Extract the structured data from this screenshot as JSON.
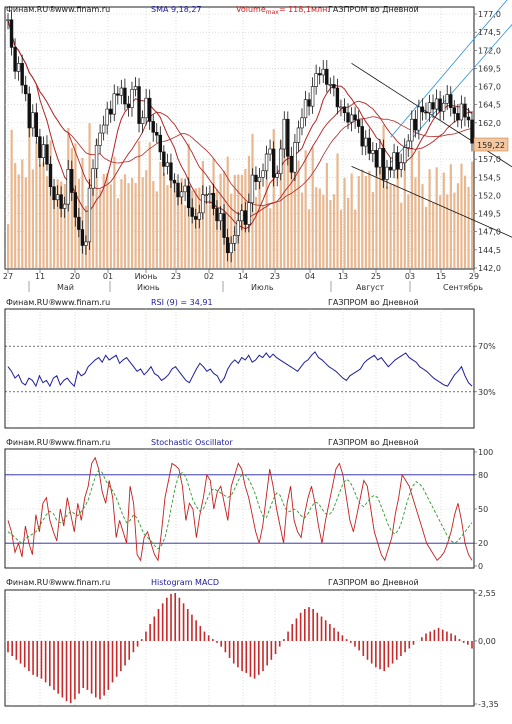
{
  "colors": {
    "background": "#ffffff",
    "panel_border": "#222222",
    "grid": "#c8c8c8",
    "header_text": "#222222",
    "header_title": "#1a1aa0",
    "header_volume": "#cc2222",
    "price_candle_up": "#111111",
    "price_candle_down": "#111111",
    "volume_bar": "#e9b78f",
    "sma": "#b42424",
    "channel_blue": "#2d8fd8",
    "channel_black": "#111111",
    "rsi_line": "#1e1e9c",
    "stoch_k": "#c41e1e",
    "stoch_d": "#2e9a2e",
    "stoch_level": "#1e1ea0",
    "macd_bar": "#c82828",
    "last_price_bg": "#f3c8a0"
  },
  "x_axis": {
    "labels": [
      "27",
      "11",
      "20",
      "01",
      "Июнь",
      "23",
      "02",
      "14",
      "23",
      "04",
      "13",
      "25",
      "03",
      "15",
      "29"
    ],
    "months": [
      "Май",
      "Июнь",
      "Июль",
      "Август",
      "Сентябрь"
    ]
  },
  "price_panel": {
    "source": "Финам.RU®",
    "site": "www.finam.ru",
    "sma_label": "SMA 9,18,27",
    "volume_label": "Volume",
    "volume_sub": "max",
    "volume_value": "= 118,1млн.",
    "title": "ГАЗПРОМ во Дневной",
    "last_price": "159,22",
    "ticks": [
      "177,0",
      "174,5",
      "172,0",
      "169,5",
      "167,0",
      "164,5",
      "162,0",
      "159,5",
      "157,0",
      "154,5",
      "152,0",
      "149,5",
      "147,0",
      "144,5",
      "142,0"
    ]
  },
  "rsi_panel": {
    "source": "Финам.RU®",
    "site": "www.finam.ru",
    "label": "RSI (9) = 34,91",
    "title": "ГАЗПРОМ во Дневной",
    "ticks": [
      "70%",
      "30%"
    ]
  },
  "stoch_panel": {
    "source": "Финам.RU®",
    "site": "www.finam.ru",
    "label": "Stochastic Oscillator",
    "title": "ГАЗПРОМ во Дневной",
    "ticks": [
      "100",
      "80",
      "50",
      "20",
      "0"
    ]
  },
  "macd_panel": {
    "source": "Финам.RU®",
    "site": "www.finam.ru",
    "label": "Histogram MACD",
    "title": "ГАЗПРОМ во Дневной",
    "ticks": [
      "2,55",
      "0,00",
      "-3,35"
    ]
  },
  "chart_data": [
    {
      "type": "candlestick",
      "title": "ГАЗПРОМ во Дневной",
      "ylim": [
        142.0,
        177.0
      ],
      "x_ticks": [
        "27",
        "11",
        "20",
        "01",
        "Июнь",
        "23",
        "02",
        "14",
        "23",
        "04",
        "13",
        "25",
        "03",
        "15",
        "29"
      ],
      "overlays": [
        "SMA 9,18,27",
        "Volume"
      ],
      "last_value": 159.22,
      "close": [
        176.2,
        172.4,
        169.1,
        170.2,
        167.2,
        166.0,
        161.3,
        163.4,
        160.1,
        157.2,
        159.0,
        156.3,
        153.2,
        151.4,
        152.1,
        150.2,
        150.8,
        155.6,
        152.4,
        149.0,
        147.3,
        145.1,
        145.6,
        153.0,
        155.7,
        158.9,
        160.6,
        161.7,
        163.9,
        163.2,
        166.0,
        165.8,
        166.8,
        164.6,
        164.1,
        166.6,
        167.0,
        161.9,
        162.7,
        165.4,
        162.2,
        160.7,
        160.3,
        158.0,
        156.0,
        156.5,
        154.1,
        153.7,
        151.8,
        152.5,
        153.3,
        150.3,
        149.1,
        148.7,
        149.6,
        152.1,
        152.1,
        152.3,
        150.2,
        148.5,
        149.5,
        146.2,
        144.1,
        145.4,
        146.5,
        148.5,
        149.9,
        148.0,
        151.0,
        154.8,
        153.9,
        154.5,
        155.4,
        157.7,
        158.4,
        154.5,
        155.0,
        158.4,
        162.5,
        157.4,
        155.2,
        159.3,
        161.3,
        162.7,
        165.2,
        164.3,
        167.0,
        168.8,
        168.6,
        169.4,
        167.3,
        167.3,
        166.8,
        164.2,
        164.2,
        163.4,
        162.1,
        163.1,
        162.4,
        161.5,
        158.8,
        159.9,
        157.8,
        158.2,
        155.9,
        158.5,
        154.2,
        155.9,
        155.5,
        157.9,
        155.6,
        156.5,
        158.6,
        159.5,
        162.5,
        161.0,
        164.2,
        163.5,
        163.4,
        164.8,
        163.9,
        165.3,
        163.6,
        164.7,
        165.9,
        164.1,
        163.3,
        162.4,
        164.6,
        162.8,
        162.4,
        159.2
      ],
      "rsi_value": 34.91
    },
    {
      "type": "line",
      "title": "RSI (9) = 34,91",
      "ylim": [
        0,
        100
      ],
      "levels": [
        70,
        30
      ],
      "values": [
        52,
        48,
        42,
        45,
        38,
        36,
        42,
        40,
        35,
        44,
        38,
        40,
        35,
        42,
        44,
        36,
        40,
        42,
        38,
        35,
        48,
        44,
        46,
        52,
        55,
        58,
        60,
        56,
        62,
        58,
        60,
        62,
        55,
        58,
        60,
        56,
        52,
        48,
        50,
        45,
        48,
        52,
        46,
        44,
        40,
        42,
        45,
        50,
        52,
        48,
        44,
        40,
        38,
        44,
        50,
        55,
        52,
        48,
        50,
        46,
        44,
        38,
        42,
        50,
        55,
        58,
        55,
        60,
        58,
        62,
        56,
        58,
        62,
        60,
        64,
        60,
        63,
        60,
        58,
        56,
        54,
        52,
        50,
        48,
        52,
        56,
        58,
        62,
        65,
        60,
        58,
        55,
        52,
        50,
        48,
        45,
        42,
        40,
        44,
        46,
        48,
        50,
        55,
        58,
        60,
        62,
        58,
        60,
        56,
        52,
        55,
        58,
        60,
        62,
        64,
        60,
        58,
        56,
        52,
        50,
        48,
        45,
        42,
        40,
        38,
        36,
        35,
        40,
        45,
        48,
        52,
        44,
        38,
        35
      ]
    },
    {
      "type": "line",
      "title": "Stochastic Oscillator",
      "ylim": [
        0,
        100
      ],
      "levels": [
        80,
        20
      ],
      "series": [
        {
          "name": "%K",
          "values": [
            40,
            30,
            12,
            20,
            8,
            35,
            20,
            10,
            45,
            30,
            55,
            60,
            40,
            30,
            22,
            50,
            35,
            60,
            45,
            30,
            55,
            40,
            60,
            70,
            90,
            95,
            85,
            65,
            55,
            75,
            60,
            25,
            40,
            30,
            20,
            70,
            55,
            10,
            5,
            25,
            30,
            20,
            10,
            5,
            30,
            60,
            75,
            90,
            88,
            85,
            70,
            40,
            55,
            50,
            25,
            45,
            60,
            80,
            75,
            50,
            65,
            70,
            55,
            40,
            70,
            80,
            90,
            85,
            70,
            60,
            45,
            30,
            20,
            35,
            60,
            85,
            70,
            50,
            35,
            20,
            55,
            70,
            40,
            30,
            25,
            45,
            60,
            70,
            55,
            35,
            20,
            40,
            55,
            70,
            85,
            90,
            80,
            60,
            40,
            30,
            45,
            60,
            75,
            70,
            50,
            30,
            20,
            10,
            5,
            15,
            25,
            45,
            60,
            80,
            75,
            70,
            60,
            50,
            40,
            30,
            20,
            15,
            10,
            5,
            8,
            12,
            20,
            30,
            45,
            55,
            40,
            20,
            10,
            5
          ]
        },
        {
          "name": "%D",
          "values": [
            30,
            28,
            25,
            22,
            20,
            24,
            26,
            28,
            30,
            35,
            40,
            45,
            48,
            46,
            40,
            38,
            40,
            45,
            48,
            46,
            44,
            48,
            52,
            58,
            68,
            78,
            84,
            82,
            75,
            70,
            66,
            60,
            52,
            44,
            38,
            40,
            45,
            42,
            35,
            28,
            25,
            22,
            18,
            15,
            18,
            25,
            38,
            55,
            70,
            80,
            82,
            78,
            68,
            58,
            52,
            48,
            50,
            58,
            65,
            68,
            66,
            64,
            62,
            60,
            62,
            68,
            75,
            80,
            80,
            76,
            70,
            62,
            52,
            44,
            42,
            50,
            58,
            64,
            62,
            54,
            48,
            48,
            50,
            48,
            44,
            42,
            46,
            52,
            56,
            55,
            50,
            46,
            45,
            48,
            56,
            64,
            72,
            76,
            74,
            68,
            60,
            54,
            52,
            56,
            60,
            62,
            60,
            52,
            44,
            36,
            30,
            28,
            32,
            40,
            52,
            62,
            70,
            74,
            72,
            68,
            62,
            56,
            50,
            44,
            38,
            32,
            26,
            22,
            20,
            22,
            26,
            30,
            34,
            38
          ]
        }
      ]
    },
    {
      "type": "bar",
      "title": "Histogram MACD",
      "ylim": [
        -3.35,
        2.55
      ],
      "values": [
        -0.6,
        -0.8,
        -1.0,
        -1.2,
        -1.4,
        -1.6,
        -1.8,
        -1.9,
        -2.0,
        -2.2,
        -2.4,
        -2.6,
        -2.8,
        -3.0,
        -3.2,
        -3.3,
        -3.1,
        -2.8,
        -2.5,
        -2.6,
        -2.8,
        -3.0,
        -3.1,
        -2.9,
        -2.6,
        -2.2,
        -1.9,
        -1.6,
        -1.3,
        -1.0,
        -0.6,
        -0.3,
        0.1,
        0.5,
        0.9,
        1.3,
        1.7,
        2.0,
        2.3,
        2.5,
        2.55,
        2.3,
        2.0,
        1.7,
        1.4,
        1.1,
        0.8,
        0.5,
        0.3,
        0.1,
        -0.1,
        -0.3,
        -0.6,
        -0.9,
        -1.2,
        -1.4,
        -1.6,
        -1.7,
        -1.9,
        -2.0,
        -1.8,
        -1.6,
        -1.3,
        -1.0,
        -0.7,
        -0.3,
        0.1,
        0.5,
        0.9,
        1.2,
        1.5,
        1.7,
        1.8,
        1.7,
        1.5,
        1.3,
        1.1,
        0.9,
        0.7,
        0.5,
        0.3,
        0.1,
        -0.1,
        -0.3,
        -0.5,
        -0.8,
        -1.0,
        -1.2,
        -1.4,
        -1.5,
        -1.6,
        -1.4,
        -1.2,
        -1.0,
        -0.8,
        -0.6,
        -0.4,
        -0.2,
        0.0,
        0.2,
        0.4,
        0.5,
        0.6,
        0.7,
        0.6,
        0.5,
        0.4,
        0.3,
        0.1,
        -0.1,
        -0.2,
        -0.4
      ]
    }
  ]
}
